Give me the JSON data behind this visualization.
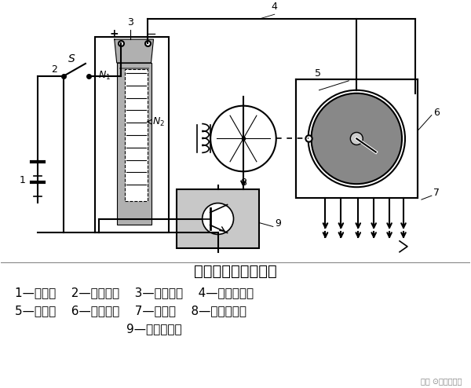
{
  "title": "点火系的工作原理图",
  "legend_line1": "1—蓄电池    2—点火开关    3—点火线圈    4—中央高压线",
  "legend_line2": "5—配电器    6—分高压线    7—火花塞    8—信号发生器",
  "legend_line3": "9—点火控制器",
  "watermark": "知乎 ⊙決车爱知家",
  "bg_color": "#ffffff",
  "lc": "#000000",
  "gray_dark": "#808080",
  "gray_mid": "#aaaaaa",
  "gray_light": "#cccccc",
  "gray_coil_outer": "#b0b0b0",
  "gray_coil_inner": "#686868",
  "gray_dist": "#888888",
  "gray_ctrl": "#c8c8c8",
  "lw": 1.5,
  "title_fontsize": 14,
  "label_fontsize": 11
}
